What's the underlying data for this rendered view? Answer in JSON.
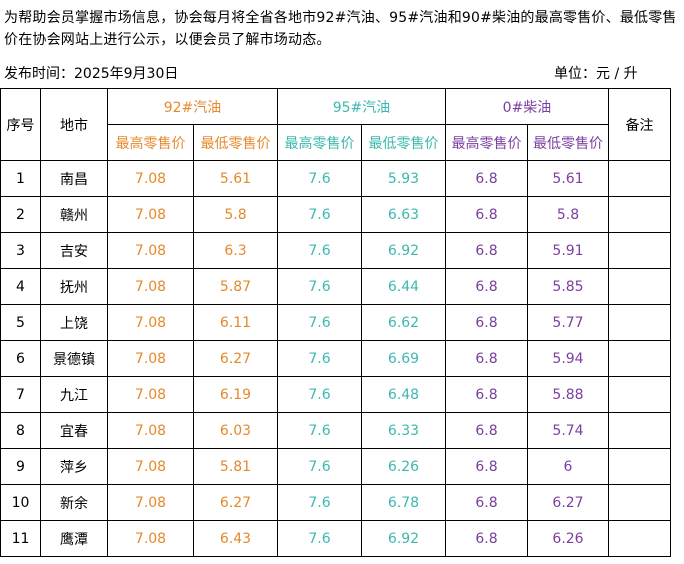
{
  "intro": "为帮助会员掌握市场信息，协会每月将全省各地市92#汽油、95#汽油和90#柴油的最高零售价、最低零售价在协会网站上进行公示，以便会员了解市场动态。",
  "publish_time": "发布时间：2025年9月30日",
  "unit": "单位：元 / 升",
  "colors": {
    "gas92": "#e58a2b",
    "gas95": "#3cb8b0",
    "diesel0": "#7a3fa0"
  },
  "headers": {
    "seq": "序号",
    "city": "地市",
    "gas92": "92#汽油",
    "gas95": "95#汽油",
    "diesel0": "0#柴油",
    "remark": "备注",
    "max_price": "最高零售价",
    "min_price": "最低零售价"
  },
  "rows": [
    {
      "seq": "1",
      "city": "南昌",
      "g92_max": "7.08",
      "g92_min": "5.61",
      "g95_max": "7.6",
      "g95_min": "5.93",
      "d0_max": "6.8",
      "d0_min": "5.61",
      "remark": ""
    },
    {
      "seq": "2",
      "city": "赣州",
      "g92_max": "7.08",
      "g92_min": "5.8",
      "g95_max": "7.6",
      "g95_min": "6.63",
      "d0_max": "6.8",
      "d0_min": "5.8",
      "remark": ""
    },
    {
      "seq": "3",
      "city": "吉安",
      "g92_max": "7.08",
      "g92_min": "6.3",
      "g95_max": "7.6",
      "g95_min": "6.92",
      "d0_max": "6.8",
      "d0_min": "5.91",
      "remark": ""
    },
    {
      "seq": "4",
      "city": "抚州",
      "g92_max": "7.08",
      "g92_min": "5.87",
      "g95_max": "7.6",
      "g95_min": "6.44",
      "d0_max": "6.8",
      "d0_min": "5.85",
      "remark": ""
    },
    {
      "seq": "5",
      "city": "上饶",
      "g92_max": "7.08",
      "g92_min": "6.11",
      "g95_max": "7.6",
      "g95_min": "6.62",
      "d0_max": "6.8",
      "d0_min": "5.77",
      "remark": ""
    },
    {
      "seq": "6",
      "city": "景德镇",
      "g92_max": "7.08",
      "g92_min": "6.27",
      "g95_max": "7.6",
      "g95_min": "6.69",
      "d0_max": "6.8",
      "d0_min": "5.94",
      "remark": ""
    },
    {
      "seq": "7",
      "city": "九江",
      "g92_max": "7.08",
      "g92_min": "6.19",
      "g95_max": "7.6",
      "g95_min": "6.48",
      "d0_max": "6.8",
      "d0_min": "5.88",
      "remark": ""
    },
    {
      "seq": "8",
      "city": "宜春",
      "g92_max": "7.08",
      "g92_min": "6.03",
      "g95_max": "7.6",
      "g95_min": "6.33",
      "d0_max": "6.8",
      "d0_min": "5.74",
      "remark": ""
    },
    {
      "seq": "9",
      "city": "萍乡",
      "g92_max": "7.08",
      "g92_min": "5.81",
      "g95_max": "7.6",
      "g95_min": "6.26",
      "d0_max": "6.8",
      "d0_min": "6",
      "remark": ""
    },
    {
      "seq": "10",
      "city": "新余",
      "g92_max": "7.08",
      "g92_min": "6.27",
      "g95_max": "7.6",
      "g95_min": "6.78",
      "d0_max": "6.8",
      "d0_min": "6.27",
      "remark": ""
    },
    {
      "seq": "11",
      "city": "鹰潭",
      "g92_max": "7.08",
      "g92_min": "6.43",
      "g95_max": "7.6",
      "g95_min": "6.92",
      "d0_max": "6.8",
      "d0_min": "6.26",
      "remark": ""
    }
  ]
}
